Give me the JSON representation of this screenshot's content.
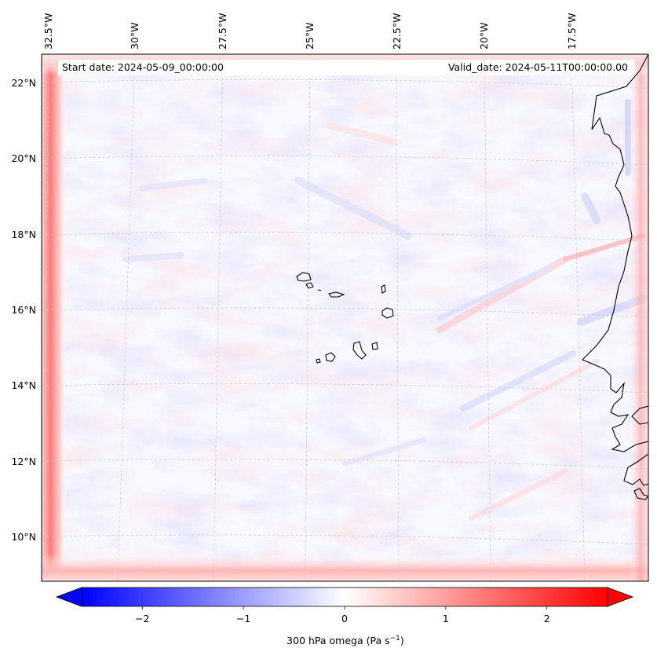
{
  "map": {
    "start_label": "Start date: 2024-05-09_00:00:00",
    "valid_label": "Valid_date: 2024-05-11T00:00:00.00",
    "longitude_labels": [
      "32.5°W",
      "30°W",
      "27.5°W",
      "25°W",
      "22.5°W",
      "20°W",
      "17.5°W"
    ],
    "latitude_labels": [
      "22°N",
      "20°N",
      "18°N",
      "16°N",
      "14°N",
      "12°N",
      "10°N"
    ],
    "variable": "300 hPa omega",
    "units": "Pa s",
    "units_exponent": "−1"
  },
  "colorbar": {
    "tick_labels": [
      "−2",
      "−1",
      "0",
      "1",
      "2"
    ],
    "tick_values": [
      -2,
      -1,
      0,
      1,
      2
    ],
    "range": [
      -2.6,
      2.6
    ],
    "negative_color": "#0000ff",
    "neutral_color": "#ffffff",
    "positive_color": "#ff0000",
    "extend": "both"
  },
  "colors": {
    "coastline": "#000000",
    "gridline": "#c8c8c8",
    "background": "#f8f8ff"
  }
}
